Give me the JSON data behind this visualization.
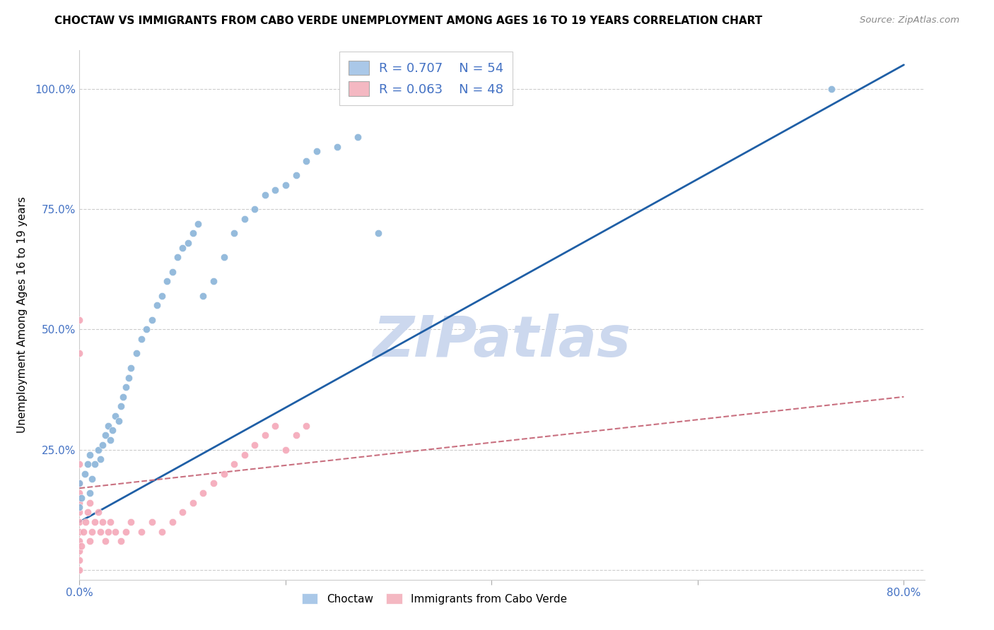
{
  "title": "CHOCTAW VS IMMIGRANTS FROM CABO VERDE UNEMPLOYMENT AMONG AGES 16 TO 19 YEARS CORRELATION CHART",
  "source_text": "Source: ZipAtlas.com",
  "ylabel": "Unemployment Among Ages 16 to 19 years",
  "xlim": [
    0.0,
    0.82
  ],
  "ylim": [
    -0.02,
    1.08
  ],
  "x_ticks": [
    0.0,
    0.2,
    0.4,
    0.6,
    0.8
  ],
  "x_tick_labels": [
    "0.0%",
    "",
    "",
    "",
    "80.0%"
  ],
  "y_ticks": [
    0.0,
    0.25,
    0.5,
    0.75,
    1.0
  ],
  "y_tick_labels": [
    "",
    "25.0%",
    "50.0%",
    "75.0%",
    "100.0%"
  ],
  "choctaw_color": "#8ab4d9",
  "cabo_verde_color": "#f4a8b8",
  "choctaw_line_color": "#1f5fa6",
  "cabo_verde_line_color": "#c97080",
  "legend_box_color_choctaw": "#aac8e8",
  "legend_box_color_cabo": "#f4b8c2",
  "R_choctaw": 0.707,
  "N_choctaw": 54,
  "R_cabo": 0.063,
  "N_cabo": 48,
  "watermark": "ZIPatlas",
  "watermark_color": "#ccd8ee",
  "background_color": "#ffffff",
  "grid_color": "#cccccc",
  "choctaw_x": [
    0.0,
    0.002,
    0.005,
    0.008,
    0.01,
    0.01,
    0.012,
    0.015,
    0.018,
    0.02,
    0.022,
    0.025,
    0.028,
    0.03,
    0.032,
    0.035,
    0.038,
    0.04,
    0.042,
    0.045,
    0.048,
    0.05,
    0.055,
    0.06,
    0.065,
    0.07,
    0.075,
    0.08,
    0.085,
    0.09,
    0.095,
    0.1,
    0.105,
    0.11,
    0.115,
    0.12,
    0.13,
    0.14,
    0.15,
    0.16,
    0.17,
    0.18,
    0.19,
    0.2,
    0.21,
    0.22,
    0.23,
    0.25,
    0.27,
    0.29,
    0.28,
    0.33,
    0.73,
    0.0
  ],
  "choctaw_y": [
    0.18,
    0.15,
    0.2,
    0.22,
    0.16,
    0.24,
    0.19,
    0.22,
    0.25,
    0.23,
    0.26,
    0.28,
    0.3,
    0.27,
    0.29,
    0.32,
    0.31,
    0.34,
    0.36,
    0.38,
    0.4,
    0.42,
    0.45,
    0.48,
    0.5,
    0.52,
    0.55,
    0.57,
    0.6,
    0.62,
    0.65,
    0.67,
    0.68,
    0.7,
    0.72,
    0.57,
    0.6,
    0.65,
    0.7,
    0.73,
    0.75,
    0.78,
    0.79,
    0.8,
    0.82,
    0.85,
    0.87,
    0.88,
    0.9,
    0.7,
    1.0,
    1.0,
    1.0,
    0.13
  ],
  "cabo_x": [
    0.0,
    0.0,
    0.0,
    0.0,
    0.0,
    0.0,
    0.0,
    0.0,
    0.0,
    0.0,
    0.002,
    0.004,
    0.006,
    0.008,
    0.01,
    0.01,
    0.012,
    0.015,
    0.018,
    0.02,
    0.022,
    0.025,
    0.028,
    0.03,
    0.035,
    0.04,
    0.045,
    0.05,
    0.06,
    0.07,
    0.08,
    0.09,
    0.1,
    0.11,
    0.12,
    0.13,
    0.14,
    0.15,
    0.16,
    0.17,
    0.18,
    0.19,
    0.2,
    0.21,
    0.22,
    0.0,
    0.0,
    0.0
  ],
  "cabo_y": [
    0.0,
    0.02,
    0.04,
    0.06,
    0.08,
    0.1,
    0.12,
    0.14,
    0.16,
    0.18,
    0.05,
    0.08,
    0.1,
    0.12,
    0.06,
    0.14,
    0.08,
    0.1,
    0.12,
    0.08,
    0.1,
    0.06,
    0.08,
    0.1,
    0.08,
    0.06,
    0.08,
    0.1,
    0.08,
    0.1,
    0.08,
    0.1,
    0.12,
    0.14,
    0.16,
    0.18,
    0.2,
    0.22,
    0.24,
    0.26,
    0.28,
    0.3,
    0.25,
    0.28,
    0.3,
    0.22,
    0.52,
    0.45
  ],
  "choctaw_line_x": [
    0.0,
    0.8
  ],
  "choctaw_line_y": [
    0.1,
    1.05
  ],
  "cabo_line_x": [
    0.0,
    0.8
  ],
  "cabo_line_y": [
    0.17,
    0.36
  ]
}
